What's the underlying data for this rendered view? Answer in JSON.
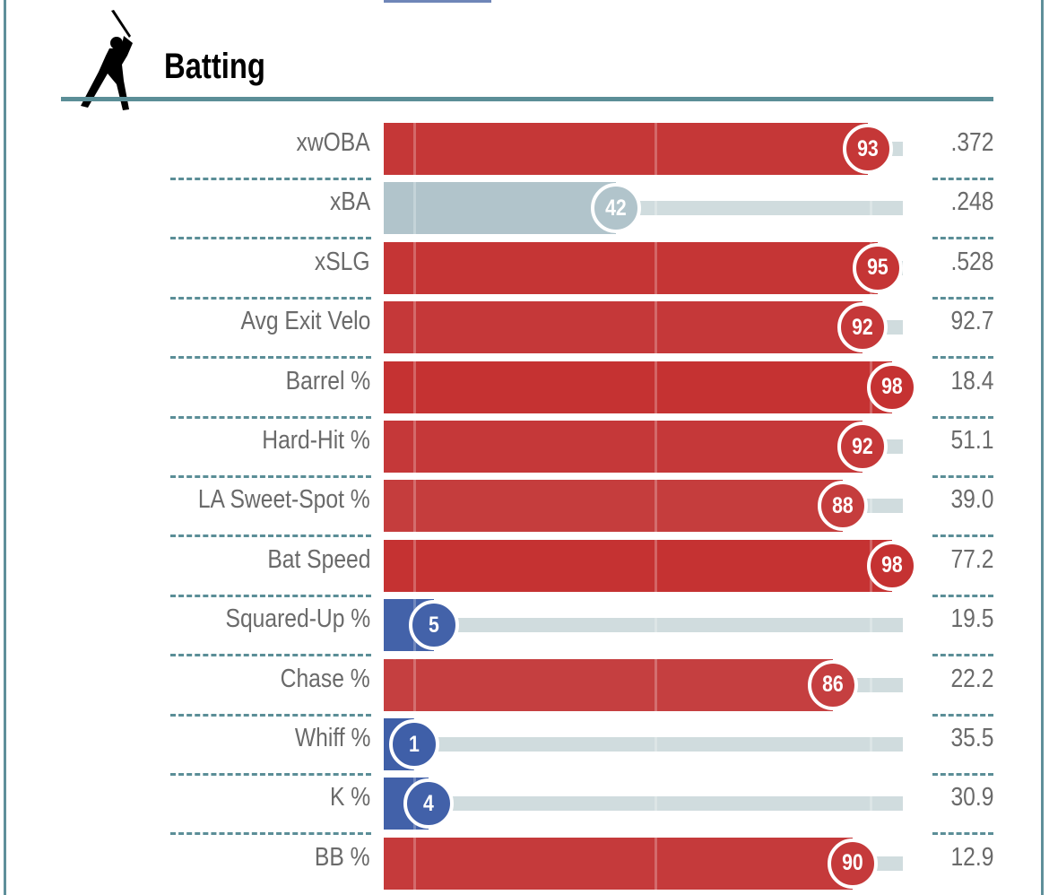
{
  "section": {
    "title": "Batting",
    "icon": "batter-silhouette-icon"
  },
  "colors": {
    "border": "#5f8f9a",
    "track": "#d0dcde",
    "high": "#c53030",
    "low": "#3e5ea8",
    "mid": "#b1c4cb"
  },
  "chart_data": {
    "type": "bar",
    "orientation": "horizontal",
    "xlim": [
      0,
      100
    ],
    "categories": [
      "xwOBA",
      "xBA",
      "xSLG",
      "Avg Exit Velo",
      "Barrel %",
      "Hard-Hit %",
      "LA Sweet-Spot %",
      "Bat Speed",
      "Squared-Up %",
      "Chase %",
      "Whiff %",
      "K %",
      "BB %"
    ],
    "percentiles": [
      93,
      42,
      95,
      92,
      98,
      92,
      88,
      98,
      5,
      86,
      1,
      4,
      90
    ],
    "values": [
      ".372",
      ".248",
      ".528",
      "92.7",
      "18.4",
      "51.1",
      "39.0",
      "77.2",
      "19.5",
      "22.2",
      "35.5",
      "30.9",
      "12.9"
    ]
  }
}
